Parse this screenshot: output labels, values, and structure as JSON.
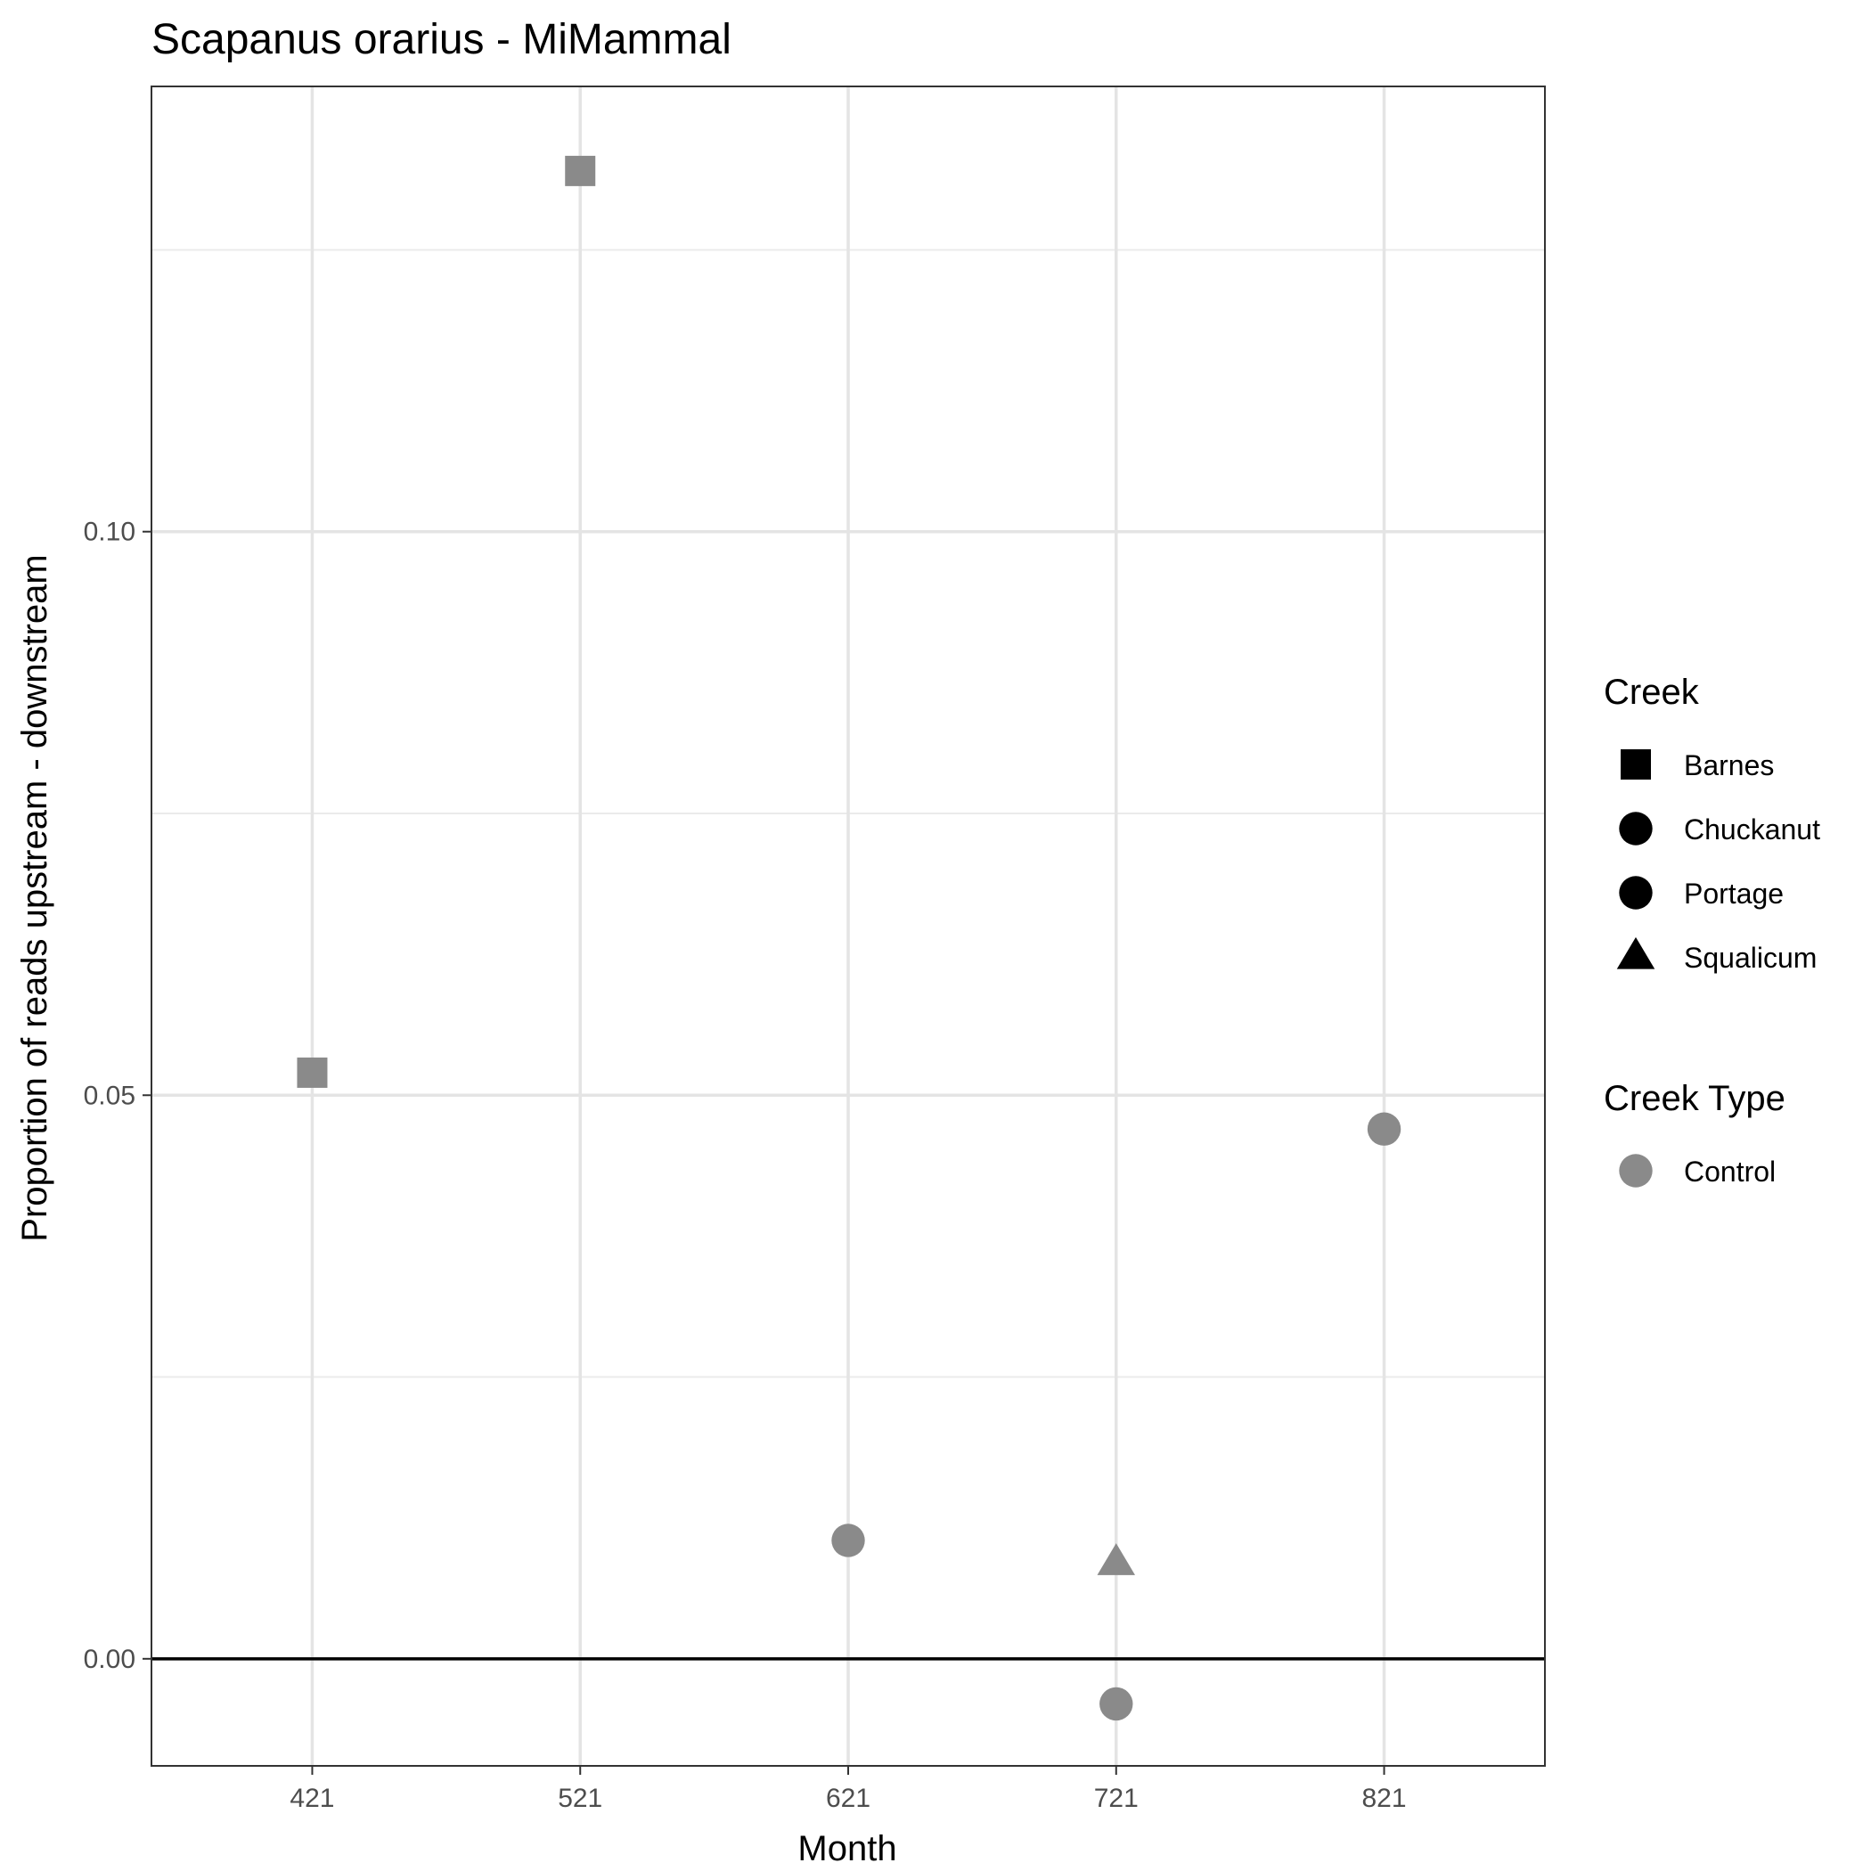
{
  "chart_data": {
    "type": "scatter",
    "title": "Scapanus orarius - MiMammal",
    "xlabel": "Month",
    "ylabel": "Proportion of reads upstream - downstream",
    "categories": [
      "421",
      "521",
      "621",
      "721",
      "821"
    ],
    "ylim": [
      -0.0095,
      0.1395
    ],
    "yticks": [
      "0.00",
      "0.05",
      "0.10"
    ],
    "grid": true,
    "reference_line_y": 0,
    "point_color": "#8a8a8a",
    "points": [
      {
        "x": "421",
        "y": 0.052,
        "creek": "Barnes",
        "creek_type": "Control"
      },
      {
        "x": "521",
        "y": 0.132,
        "creek": "Barnes",
        "creek_type": "Control"
      },
      {
        "x": "621",
        "y": 0.0105,
        "creek": "Chuckanut",
        "creek_type": "Control"
      },
      {
        "x": "721",
        "y": 0.0085,
        "creek": "Squalicum",
        "creek_type": "Control"
      },
      {
        "x": "721",
        "y": -0.004,
        "creek": "Portage",
        "creek_type": "Control"
      },
      {
        "x": "821",
        "y": 0.047,
        "creek": "Portage",
        "creek_type": "Control"
      }
    ],
    "legend_placement": "right",
    "legends": [
      {
        "title": "Creek",
        "entries": [
          {
            "label": "Barnes",
            "shape": "square",
            "color": "#000000"
          },
          {
            "label": "Chuckanut",
            "shape": "circle",
            "color": "#000000"
          },
          {
            "label": "Portage",
            "shape": "circle",
            "color": "#000000"
          },
          {
            "label": "Squalicum",
            "shape": "triangle",
            "color": "#000000"
          }
        ]
      },
      {
        "title": "Creek Type",
        "entries": [
          {
            "label": "Control",
            "shape": "circle",
            "color": "#8a8a8a"
          }
        ]
      }
    ]
  }
}
